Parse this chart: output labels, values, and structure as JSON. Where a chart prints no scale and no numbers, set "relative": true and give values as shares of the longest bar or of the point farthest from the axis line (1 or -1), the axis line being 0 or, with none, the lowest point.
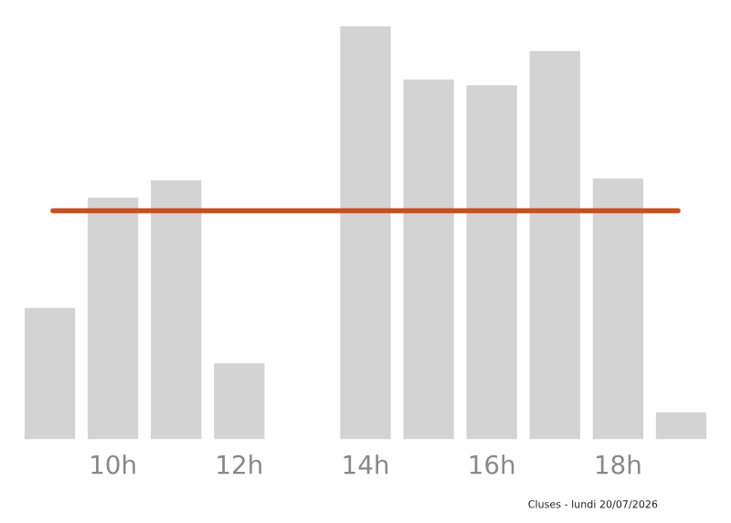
{
  "chart_data": {
    "type": "bar",
    "relative": true,
    "categories": [
      null,
      "10h",
      null,
      "12h",
      null,
      "14h",
      null,
      "16h",
      null,
      "18h",
      null
    ],
    "values": [
      0.318,
      0.585,
      0.627,
      0.184,
      0,
      1,
      0.871,
      0.857,
      0.94,
      0.631,
      0.065
    ],
    "color": "#d3d3d3",
    "ref_lines": [
      {
        "axis": "y",
        "value": 0.553,
        "color": "#c8501e",
        "line_style": "solid"
      }
    ],
    "grid": false,
    "legend": false,
    "annotations": [
      "Cluses - lundi 20/07/2026"
    ]
  }
}
